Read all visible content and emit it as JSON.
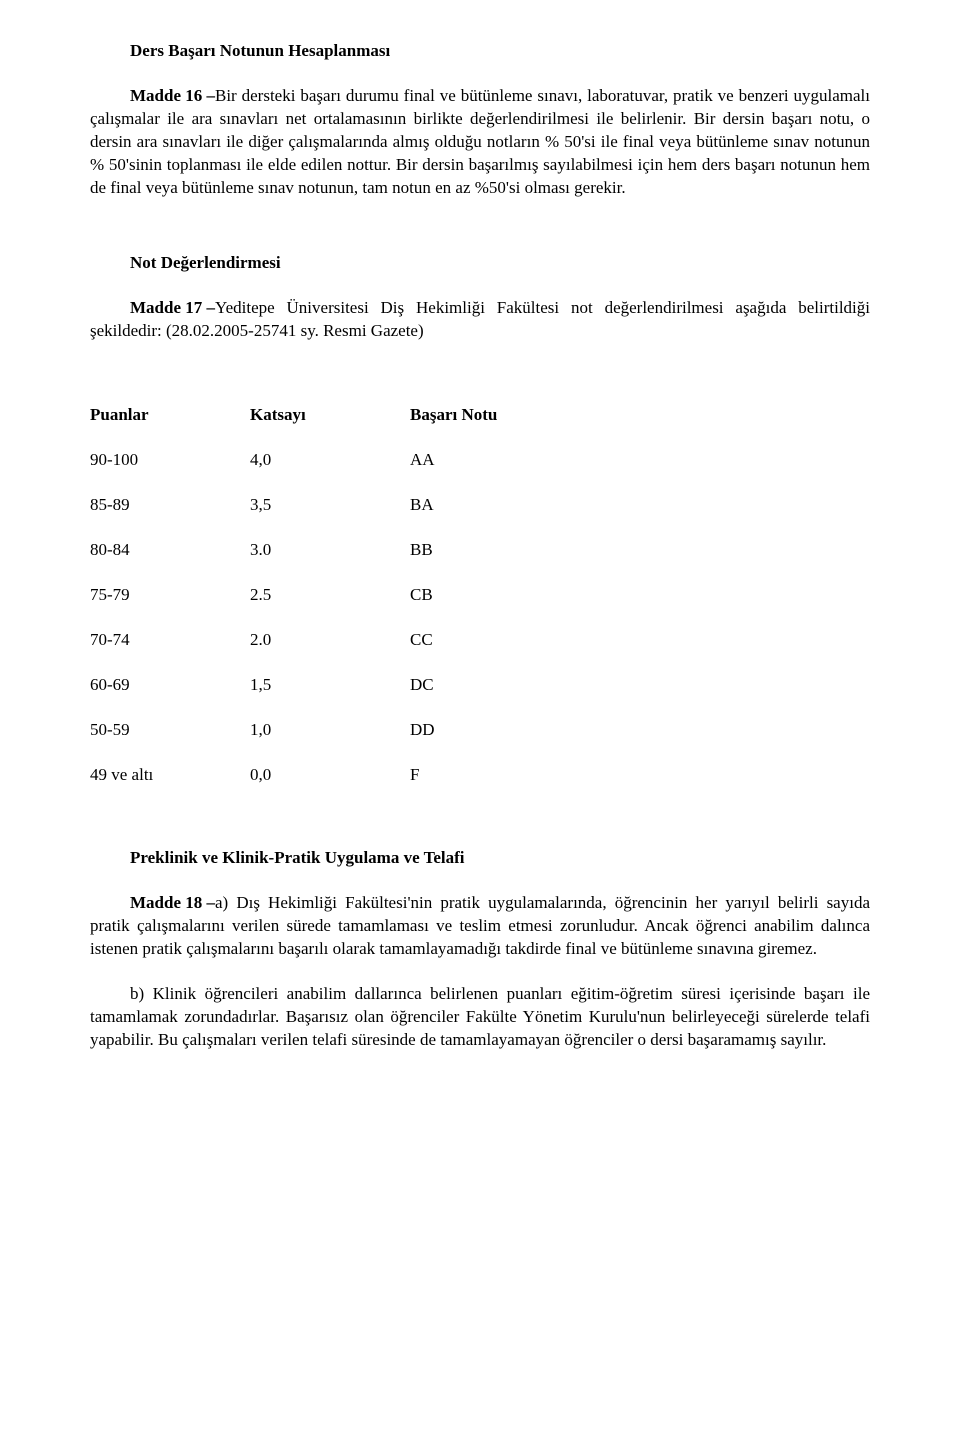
{
  "section1": {
    "heading": "Ders Başarı Notunun Hesaplanması",
    "madde_label": "Madde 16 – ",
    "body": "Bir dersteki başarı durumu final ve bütünleme sınavı, laboratuvar, pratik ve benzeri uygulamalı çalışmalar ile ara sınavları net ortalamasının birlikte değerlendirilmesi ile belirlenir. Bir dersin başarı notu, o dersin ara sınavları ile diğer çalışmalarında almış olduğu notların % 50'si ile final veya bütünleme sınav notunun % 50'sinin toplanması ile elde edilen nottur. Bir dersin başarılmış sayılabilmesi için hem ders başarı notunun hem de final veya bütünleme sınav notunun, tam notun en az %50'si olması gerekir."
  },
  "section2": {
    "heading": "Not Değerlendirmesi",
    "madde_label": "Madde 17 – ",
    "body": "Yeditepe Üniversitesi Diş Hekimliği Fakültesi not değerlendirilmesi aşağıda belirtildiği şekildedir: (28.02.2005-25741 sy. Resmi Gazete)"
  },
  "grade_table": {
    "headers": {
      "puanlar": "Puanlar",
      "katsayi": "Katsayı",
      "basari": "Başarı Notu"
    },
    "rows": [
      {
        "puan": "90-100",
        "katsayi": "4,0",
        "not": "AA"
      },
      {
        "puan": "85-89",
        "katsayi": "3,5",
        "not": "BA"
      },
      {
        "puan": "80-84",
        "katsayi": "3.0",
        "not": "BB"
      },
      {
        "puan": "75-79",
        "katsayi": "2.5",
        "not": "CB"
      },
      {
        "puan": "70-74",
        "katsayi": "2.0",
        "not": "CC"
      },
      {
        "puan": "60-69",
        "katsayi": "1,5",
        "not": "DC"
      },
      {
        "puan": "50-59",
        "katsayi": "1,0",
        "not": "DD"
      },
      {
        "puan": "49 ve altı",
        "katsayi": "0,0",
        "not": "F"
      }
    ]
  },
  "section3": {
    "heading": "Preklinik ve Klinik-Pratik Uygulama ve Telafi",
    "madde_label": "Madde 18 – ",
    "body_a": "a) Dış Hekimliği Fakültesi'nin pratik uygulamalarında, öğrencinin her yarıyıl belirli sayıda pratik çalışmalarını verilen sürede tamamlaması ve teslim etmesi zorunludur. Ancak öğrenci anabilim dalınca istenen pratik çalışmalarını başarılı olarak tamamlayamadığı takdirde final ve bütünleme sınavına giremez.",
    "body_b": "b) Klinik öğrencileri anabilim dallarınca belirlenen puanları eğitim-öğretim süresi içerisinde başarı ile tamamlamak zorundadırlar. Başarısız olan öğrenciler Fakülte Yönetim Kurulu'nun belirleyeceği sürelerde telafi yapabilir. Bu çalışmaları verilen telafi süresinde de tamamlayamayan öğrenciler o dersi başaramamış sayılır."
  }
}
